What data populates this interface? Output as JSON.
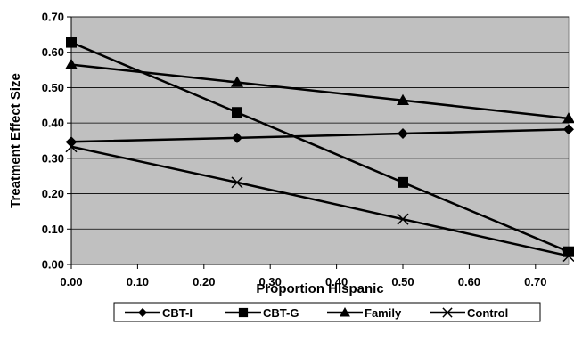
{
  "chart_data": {
    "type": "line",
    "xlabel": "Proportion Hispanic",
    "ylabel": "Treatment Effect Size",
    "xlim": [
      0,
      0.75
    ],
    "ylim": [
      0,
      0.7
    ],
    "x_ticks": [
      "0.00",
      "0.10",
      "0.20",
      "0.30",
      "0.40",
      "0.50",
      "0.60",
      "0.70"
    ],
    "y_ticks": [
      "0.00",
      "0.10",
      "0.20",
      "0.30",
      "0.40",
      "0.50",
      "0.60",
      "0.70"
    ],
    "grid": "horizontal",
    "plot_background": "#c0c0c0",
    "legend_position": "bottom",
    "x": [
      0,
      0.25,
      0.5,
      0.75
    ],
    "series": [
      {
        "name": "CBT-I",
        "marker": "diamond",
        "values": [
          0.347,
          0.358,
          0.37,
          0.382
        ]
      },
      {
        "name": "CBT-G",
        "marker": "square",
        "values": [
          0.628,
          0.43,
          0.232,
          0.036
        ]
      },
      {
        "name": "Family",
        "marker": "triangle",
        "values": [
          0.565,
          0.515,
          0.464,
          0.413
        ]
      },
      {
        "name": "Control",
        "marker": "x",
        "values": [
          0.333,
          0.232,
          0.128,
          0.024
        ]
      }
    ]
  }
}
